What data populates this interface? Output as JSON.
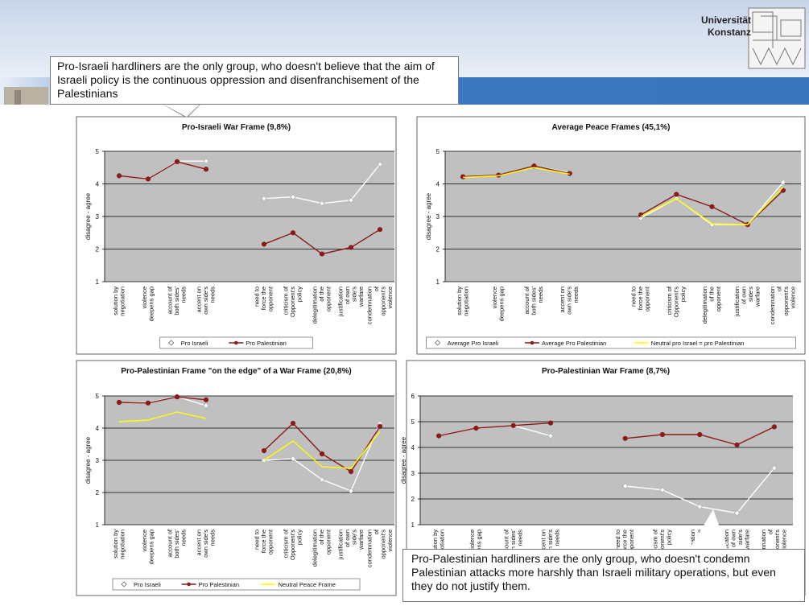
{
  "header": {
    "lines": [
      "Universität",
      "Konstanz"
    ]
  },
  "callouts": [
    "Pro-Israeli hardliners are the only group, who doesn't believe that the aim of Israeli policy is the continuous oppression and disenfranchisement of the Palestinians",
    "Pro-Palestinian hardliners are the only group, who doesn't condemn Palestinian attacks more harshly than Israeli military operations, but even they do not justify them."
  ],
  "chart_data": [
    {
      "type": "line",
      "title": "Pro-Israeli War Frame (9,8%)",
      "ylabel": "disagree - agree",
      "categories": [
        "solution by negotiation",
        "violence deepens gap",
        "account of both sides' needs",
        "accent on own side's needs",
        null,
        "need to force the opponent",
        "criticism of Opponent's policy",
        "delegitimation of the opponent",
        "justification of own side's warfare",
        "condemnation of opponent's violence"
      ],
      "series": [
        {
          "name": "Pro Israeli",
          "color": "#ffffff",
          "marker": "diamond",
          "values": [
            4.25,
            4.15,
            4.7,
            4.7,
            null,
            3.55,
            3.6,
            3.4,
            3.5,
            4.6
          ]
        },
        {
          "name": "Pro Palestinian",
          "color": "#8b1a1a",
          "marker": "circle",
          "values": [
            4.25,
            4.15,
            4.68,
            4.45,
            null,
            2.15,
            2.5,
            1.85,
            2.05,
            2.6
          ]
        }
      ],
      "ylim": [
        1,
        5
      ],
      "yticks": [
        1,
        2,
        3,
        4,
        5
      ],
      "grid": true,
      "legend": "bottom"
    },
    {
      "type": "line",
      "title": "Average Peace Frames (45,1%)",
      "ylabel": "disagree - agree",
      "categories": [
        "solution by negotiation",
        "violence deepens gap",
        "account of both sides' needs",
        "accent on own side's needs",
        null,
        "need to force the opponent",
        "criticism of Opponent's policy",
        "delegitimation of the opponent",
        "justification of own side's warfare",
        "condemnation of opponent's violence"
      ],
      "series": [
        {
          "name": "Average Pro Israeli",
          "color": "#ffffff",
          "marker": "diamond",
          "values": [
            4.2,
            4.25,
            4.55,
            4.35,
            null,
            2.95,
            3.55,
            2.75,
            2.75,
            4.05
          ]
        },
        {
          "name": "Average Pro Palestinian",
          "color": "#8b1a1a",
          "marker": "circle",
          "values": [
            4.22,
            4.27,
            4.55,
            4.32,
            null,
            3.05,
            3.68,
            3.3,
            2.75,
            3.8
          ]
        },
        {
          "name": "Neutral pro Israel = pro Palestinian",
          "color": "#ffff00",
          "marker": "none",
          "values": [
            4.2,
            4.25,
            4.5,
            4.3,
            null,
            3.0,
            3.55,
            2.78,
            2.75,
            3.9
          ]
        }
      ],
      "ylim": [
        1,
        5
      ],
      "yticks": [
        1,
        2,
        3,
        4,
        5
      ],
      "grid": true,
      "legend": "bottom"
    },
    {
      "type": "line",
      "title": "Pro-Palestinian Frame \"on the edge\" of a War Frame (20,8%)",
      "ylabel": "disagree - agree",
      "categories": [
        "solution by negotiation",
        "violence deepens gap",
        "account of both sides' needs",
        "accent on own side's needs",
        null,
        "need to force the opponent",
        "criticism of Opponent's policy",
        "delegitimation of the opponent",
        "justification of own side's warfare",
        "condemnation of opponent's violence"
      ],
      "series": [
        {
          "name": "Pro Israeli",
          "color": "#ffffff",
          "marker": "diamond",
          "values": [
            4.8,
            4.8,
            4.98,
            4.7,
            null,
            3.0,
            3.05,
            2.4,
            2.05,
            4.15
          ]
        },
        {
          "name": "Pro Palestinian",
          "color": "#8b1a1a",
          "marker": "circle",
          "values": [
            4.8,
            4.78,
            4.97,
            4.88,
            null,
            3.3,
            4.15,
            3.2,
            2.65,
            4.05
          ]
        },
        {
          "name": "Neutral Peace Frame",
          "color": "#ffff00",
          "marker": "none",
          "values": [
            4.2,
            4.25,
            4.5,
            4.3,
            null,
            3.0,
            3.6,
            2.8,
            2.75,
            3.9
          ]
        }
      ],
      "ylim": [
        1,
        5
      ],
      "yticks": [
        1,
        2,
        3,
        4,
        5
      ],
      "grid": true,
      "legend": "bottom"
    },
    {
      "type": "line",
      "title": "Pro-Palestinian War Frame (8,7%)",
      "ylabel": "disagree - agree",
      "categories": [
        "solution by negotiation",
        "violence deepens gap",
        "account of both sides' needs",
        "accent on own side's needs",
        null,
        "need to force the opponent",
        "criticism of Opponent's policy",
        "delegitimation of the opponent",
        "justification of own side's warfare",
        "condemnation of opponent's violence"
      ],
      "series": [
        {
          "color": "#ffffff",
          "marker": "diamond",
          "values": [
            4.45,
            4.75,
            4.85,
            4.45,
            null,
            2.5,
            2.35,
            1.7,
            1.45,
            3.2
          ]
        },
        {
          "color": "#8b1a1a",
          "marker": "circle",
          "values": [
            4.45,
            4.75,
            4.85,
            4.95,
            null,
            4.35,
            4.5,
            4.5,
            4.1,
            4.8
          ]
        }
      ],
      "ylim": [
        1,
        6
      ],
      "yticks": [
        1,
        2,
        3,
        4,
        5,
        6
      ],
      "grid": true
    }
  ]
}
